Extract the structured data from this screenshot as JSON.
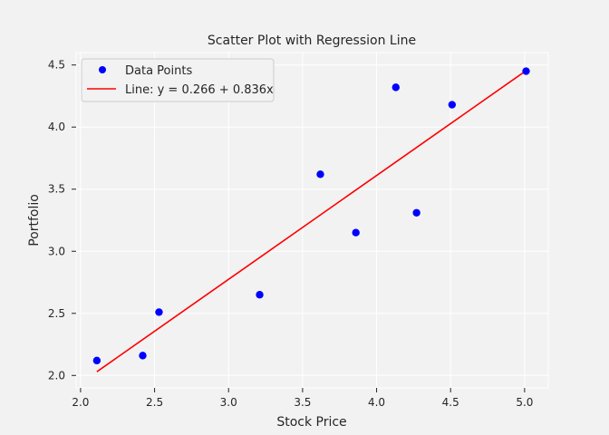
{
  "chart_data": {
    "type": "scatter",
    "title": "Scatter Plot with Regression Line",
    "xlabel": "Stock Price",
    "ylabel": "Portfolio",
    "xlim": [
      1.97,
      5.16
    ],
    "ylim": [
      1.9,
      4.6
    ],
    "xticks": [
      2.0,
      2.5,
      3.0,
      3.5,
      4.0,
      4.5,
      5.0
    ],
    "yticks": [
      2.0,
      2.5,
      3.0,
      3.5,
      4.0,
      4.5
    ],
    "xtick_labels": [
      "2.0",
      "2.5",
      "3.0",
      "3.5",
      "4.0",
      "4.5",
      "5.0"
    ],
    "ytick_labels": [
      "2.0",
      "2.5",
      "3.0",
      "3.5",
      "4.0",
      "4.5"
    ],
    "grid": true,
    "legend_position": "top-left",
    "series": [
      {
        "name": "Data Points",
        "kind": "scatter",
        "color": "#0000ff",
        "x": [
          2.11,
          2.42,
          2.53,
          3.21,
          3.62,
          3.86,
          4.13,
          4.27,
          4.51,
          5.01
        ],
        "y": [
          2.12,
          2.16,
          2.51,
          2.65,
          3.62,
          3.15,
          4.32,
          3.31,
          4.18,
          4.45
        ]
      },
      {
        "name": "Line: y = 0.266 + 0.836x",
        "kind": "line",
        "color": "#ff0000",
        "intercept": 0.266,
        "slope": 0.836,
        "x_range": [
          2.11,
          5.01
        ]
      }
    ]
  }
}
